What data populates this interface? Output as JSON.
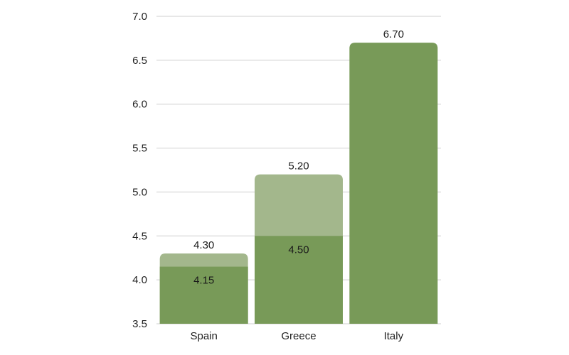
{
  "chart_data": {
    "type": "bar",
    "categories": [
      "Spain",
      "Greece",
      "Italy"
    ],
    "series": [
      {
        "values": [
          4.15,
          4.5,
          6.7
        ],
        "color": "#789a58"
      },
      {
        "values": [
          4.3,
          5.2,
          null
        ],
        "color": "#a3b78c"
      }
    ],
    "labels": {
      "lower": [
        "4.15",
        "4.50",
        ""
      ],
      "upper": [
        "4.30",
        "5.20",
        "6.70"
      ]
    },
    "yticks": [
      "3.5",
      "4.0",
      "4.5",
      "5.0",
      "5.5",
      "6.0",
      "6.5",
      "7.0"
    ],
    "ylim": [
      3.5,
      7.0
    ],
    "grid": true,
    "legend": "none"
  }
}
